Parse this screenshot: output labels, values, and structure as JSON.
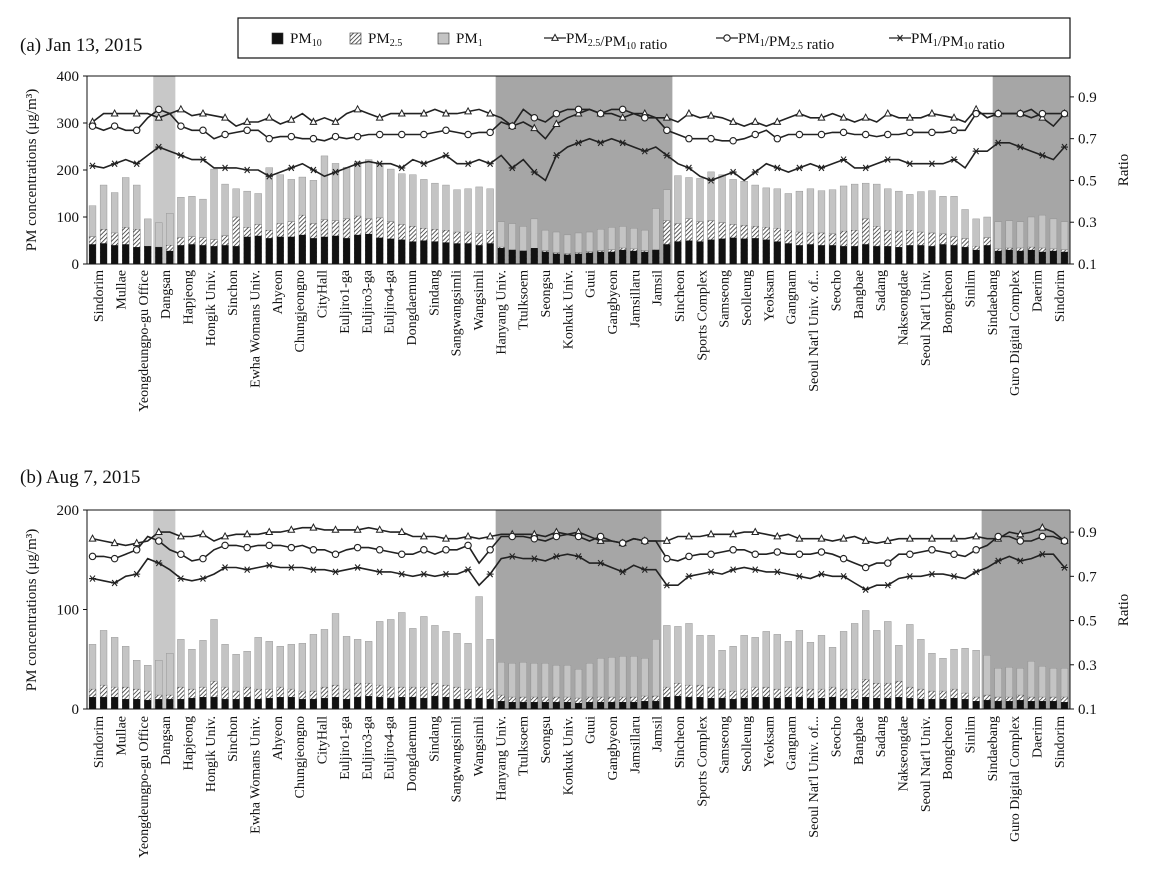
{
  "legend": {
    "items": [
      {
        "id": "pm10",
        "label": "PM",
        "sub": "10",
        "suffix": "",
        "kind": "bar-black"
      },
      {
        "id": "pm25",
        "label": "PM",
        "sub": "2.5",
        "suffix": "",
        "kind": "bar-hatch"
      },
      {
        "id": "pm1",
        "label": "PM",
        "sub": "1",
        "suffix": "",
        "kind": "bar-gray"
      },
      {
        "id": "r25_10",
        "label": "PM",
        "sub": "2.5",
        "suffix": "/PM",
        "sub2": "10",
        "suffix2": " ratio",
        "kind": "tri"
      },
      {
        "id": "r1_25",
        "label": "PM",
        "sub": "1",
        "suffix": "/PM",
        "sub2": "2.5",
        "suffix2": " ratio",
        "kind": "circle"
      },
      {
        "id": "r1_10",
        "label": "PM",
        "sub": "1",
        "suffix": "/PM",
        "sub2": "10",
        "suffix2": " ratio",
        "kind": "star"
      }
    ]
  },
  "colors": {
    "pm10": "#111111",
    "pm25_hatch": "#555555",
    "pm1": "#c4c4c4",
    "shade_light": "#c8c8c8",
    "shade_dark": "#a6a6a6",
    "line": "#222222"
  },
  "chart_data": [
    {
      "type": "bar",
      "title": "(a) Jan 13, 2015",
      "ylabel": "PM concentrations (μg/m³)",
      "y2label": "Ratio",
      "ylim": [
        0,
        400
      ],
      "yticks": [
        0,
        100,
        200,
        300,
        400
      ],
      "y2lim": [
        0.1,
        1.0
      ],
      "y2ticks": [
        "0.1",
        "0.3",
        "0.5",
        "0.7",
        "0.9"
      ],
      "x_labels": [
        "Sindorim",
        "Mullae",
        "Yeongdeungpo-gu Office",
        "Dangsan",
        "Hapjeong",
        "Hongik Univ.",
        "Sinchon",
        "Ewha Womans Univ.",
        "Ahyeon",
        "Chungjeongno",
        "CityHall",
        "Euljiro1-ga",
        "Euljiro3-ga",
        "Euljiro4-ga",
        "Dongdaemun",
        "Sindang",
        "Sangwangsimli",
        "Wangsimli",
        "Hanyang Univ.",
        "Ttulksoem",
        "Seongsu",
        "Konkuk Univ.",
        "Guui",
        "Gangbyeon",
        "Jamsillaru",
        "Jamsil",
        "Sincheon",
        "Sports Complex",
        "Samseong",
        "Seolleung",
        "Yeoksam",
        "Gangnam",
        "Seoul Nat'l Univ. of...",
        "Seocho",
        "Bangbae",
        "Sadang",
        "Nakseongdae",
        "Seoul Nat'l Univ.",
        "Bongcheon",
        "Sinlim",
        "Sindaebang",
        "Guro Digital Complex",
        "Daerim",
        "Sindorim"
      ],
      "shaded": [
        {
          "from": 6,
          "to": 7,
          "tone": "light"
        },
        {
          "from": 37,
          "to": 52,
          "tone": "dark"
        },
        {
          "from": 82,
          "to": 88,
          "tone": "dark"
        }
      ],
      "pm10": [
        42,
        44,
        40,
        42,
        36,
        38,
        36,
        28,
        40,
        42,
        40,
        38,
        40,
        38,
        58,
        60,
        55,
        58,
        58,
        62,
        55,
        58,
        60,
        55,
        62,
        64,
        56,
        54,
        52,
        48,
        50,
        48,
        46,
        44,
        44,
        40,
        44,
        34,
        30,
        28,
        34,
        26,
        22,
        20,
        22,
        24,
        26,
        26,
        30,
        28,
        26,
        30,
        42,
        48,
        50,
        48,
        52,
        54,
        56,
        54,
        55,
        52,
        48,
        44,
        40,
        42,
        40,
        40,
        38,
        38,
        42,
        38,
        38,
        36,
        40,
        40,
        38,
        42,
        40,
        36,
        30,
        40,
        28,
        30,
        28,
        30,
        26,
        28,
        26
      ],
      "pm25": [
        58,
        74,
        66,
        78,
        74,
        38,
        36,
        40,
        56,
        58,
        56,
        52,
        60,
        100,
        78,
        84,
        72,
        86,
        90,
        104,
        86,
        94,
        92,
        96,
        102,
        96,
        98,
        90,
        84,
        80,
        76,
        74,
        72,
        68,
        68,
        65,
        72,
        36,
        30,
        28,
        32,
        28,
        24,
        22,
        24,
        26,
        28,
        30,
        34,
        32,
        28,
        30,
        92,
        86,
        96,
        90,
        92,
        88,
        84,
        82,
        80,
        78,
        76,
        72,
        68,
        66,
        66,
        64,
        70,
        72,
        96,
        80,
        72,
        70,
        72,
        68,
        66,
        64,
        58,
        54,
        38,
        56,
        32,
        34,
        34,
        36,
        34,
        32,
        30
      ],
      "pm1": [
        124,
        168,
        152,
        184,
        168,
        96,
        88,
        108,
        142,
        144,
        138,
        202,
        170,
        160,
        155,
        150,
        205,
        190,
        180,
        185,
        178,
        230,
        214,
        206,
        218,
        222,
        214,
        202,
        192,
        190,
        180,
        172,
        168,
        158,
        160,
        164,
        160,
        90,
        86,
        80,
        96,
        72,
        68,
        62,
        66,
        68,
        74,
        78,
        80,
        76,
        72,
        118,
        158,
        188,
        184,
        182,
        196,
        190,
        180,
        176,
        168,
        162,
        160,
        150,
        155,
        160,
        156,
        158,
        166,
        170,
        172,
        170,
        160,
        155,
        148,
        154,
        156,
        144,
        144,
        116,
        96,
        100,
        90,
        92,
        90,
        100,
        104,
        96,
        90
      ],
      "r25_10": [
        0.78,
        0.82,
        0.82,
        0.82,
        0.82,
        0.82,
        0.8,
        0.82,
        0.84,
        0.81,
        0.82,
        0.81,
        0.8,
        0.76,
        0.78,
        0.78,
        0.8,
        0.77,
        0.79,
        0.82,
        0.78,
        0.8,
        0.78,
        0.82,
        0.84,
        0.82,
        0.8,
        0.82,
        0.82,
        0.82,
        0.82,
        0.84,
        0.82,
        0.82,
        0.83,
        0.84,
        0.82,
        0.8,
        0.76,
        0.78,
        0.75,
        0.7,
        0.77,
        0.8,
        0.82,
        0.84,
        0.82,
        0.82,
        0.8,
        0.82,
        0.82,
        0.8,
        0.8,
        0.78,
        0.82,
        0.8,
        0.81,
        0.8,
        0.78,
        0.76,
        0.78,
        0.76,
        0.78,
        0.8,
        0.82,
        0.8,
        0.8,
        0.82,
        0.8,
        0.78,
        0.8,
        0.78,
        0.82,
        0.8,
        0.8,
        0.8,
        0.82,
        0.81,
        0.8,
        0.78,
        0.84,
        0.8,
        0.82,
        0.82,
        0.82,
        0.84,
        0.8,
        0.76,
        0.82
      ],
      "r1_25": [
        0.76,
        0.74,
        0.76,
        0.74,
        0.74,
        0.8,
        0.84,
        0.82,
        0.76,
        0.74,
        0.74,
        0.7,
        0.72,
        0.73,
        0.74,
        0.74,
        0.7,
        0.71,
        0.71,
        0.7,
        0.7,
        0.69,
        0.71,
        0.7,
        0.71,
        0.72,
        0.72,
        0.72,
        0.72,
        0.72,
        0.72,
        0.73,
        0.74,
        0.73,
        0.72,
        0.73,
        0.73,
        0.78,
        0.76,
        0.84,
        0.8,
        0.78,
        0.82,
        0.84,
        0.84,
        0.84,
        0.82,
        0.84,
        0.84,
        0.82,
        0.8,
        0.8,
        0.74,
        0.72,
        0.7,
        0.7,
        0.7,
        0.69,
        0.69,
        0.7,
        0.72,
        0.74,
        0.7,
        0.72,
        0.72,
        0.72,
        0.72,
        0.73,
        0.73,
        0.72,
        0.72,
        0.71,
        0.72,
        0.72,
        0.73,
        0.73,
        0.73,
        0.73,
        0.74,
        0.74,
        0.82,
        0.82,
        0.82,
        0.82,
        0.82,
        0.8,
        0.82,
        0.82,
        0.82
      ],
      "r1_10": [
        0.57,
        0.56,
        0.58,
        0.6,
        0.58,
        0.62,
        0.66,
        0.64,
        0.62,
        0.6,
        0.6,
        0.56,
        0.56,
        0.56,
        0.55,
        0.55,
        0.52,
        0.54,
        0.56,
        0.58,
        0.55,
        0.52,
        0.54,
        0.56,
        0.58,
        0.59,
        0.58,
        0.58,
        0.56,
        0.6,
        0.58,
        0.6,
        0.62,
        0.58,
        0.58,
        0.6,
        0.58,
        0.62,
        0.56,
        0.6,
        0.54,
        0.5,
        0.62,
        0.66,
        0.68,
        0.7,
        0.68,
        0.7,
        0.68,
        0.66,
        0.64,
        0.66,
        0.62,
        0.58,
        0.56,
        0.52,
        0.5,
        0.52,
        0.54,
        0.5,
        0.54,
        0.58,
        0.56,
        0.54,
        0.56,
        0.58,
        0.56,
        0.58,
        0.6,
        0.56,
        0.56,
        0.58,
        0.6,
        0.6,
        0.58,
        0.58,
        0.58,
        0.58,
        0.6,
        0.56,
        0.64,
        0.64,
        0.68,
        0.68,
        0.66,
        0.64,
        0.62,
        0.6,
        0.66
      ]
    },
    {
      "type": "bar",
      "title": "(b) Aug 7, 2015",
      "ylabel": "PM concentrations (μg/m³)",
      "y2label": "Ratio",
      "ylim": [
        0,
        200
      ],
      "yticks": [
        0,
        100,
        200
      ],
      "y2lim": [
        0.1,
        1.0
      ],
      "y2ticks": [
        "0.1",
        "0.3",
        "0.5",
        "0.7",
        "0.9"
      ],
      "x_labels": [
        "Sindorim",
        "Mullae",
        "Yeongdeungpo-gu Office",
        "Dangsan",
        "Hapjeong",
        "Hongik Univ.",
        "Sinchon",
        "Ewha Womans Univ.",
        "Ahyeon",
        "Chungjeongno",
        "CityHall",
        "Euljiro1-ga",
        "Euljiro3-ga",
        "Euljiro4-ga",
        "Dongdaemun",
        "Sindang",
        "Sangwangsimli",
        "Wangsimli",
        "Hanyang Univ.",
        "Ttulksoem",
        "Seongsu",
        "Konkuk Univ.",
        "Guui",
        "Gangbyeon",
        "Jamsillaru",
        "Jamsil",
        "Sincheon",
        "Sports Complex",
        "Samseong",
        "Seolleung",
        "Yeoksam",
        "Gangnam",
        "Seoul Nat'l Univ. of...",
        "Seocho",
        "Bangbae",
        "Sadang",
        "Nakseongdae",
        "Seoul Nat'l Univ.",
        "Bongcheon",
        "Sinlim",
        "Sindaebang",
        "Guro Digital Complex",
        "Daerim",
        "Sindorim"
      ],
      "shaded": [
        {
          "from": 6,
          "to": 7,
          "tone": "light"
        },
        {
          "from": 37,
          "to": 51,
          "tone": "dark"
        },
        {
          "from": 81,
          "to": 88,
          "tone": "dark"
        }
      ],
      "pm10": [
        12,
        12,
        12,
        10,
        10,
        9,
        10,
        10,
        10,
        11,
        12,
        12,
        10,
        10,
        12,
        10,
        11,
        12,
        12,
        10,
        10,
        11,
        12,
        10,
        12,
        13,
        12,
        11,
        12,
        12,
        11,
        13,
        12,
        10,
        10,
        11,
        10,
        8,
        7,
        7,
        7,
        7,
        7,
        7,
        6,
        7,
        7,
        7,
        7,
        7,
        8,
        8,
        12,
        13,
        12,
        12,
        11,
        11,
        10,
        11,
        12,
        12,
        11,
        12,
        12,
        11,
        11,
        12,
        11,
        10,
        12,
        11,
        11,
        12,
        11,
        10,
        10,
        10,
        11,
        10,
        8,
        9,
        8,
        8,
        9,
        8,
        8,
        8,
        7
      ],
      "pm25": [
        20,
        24,
        22,
        22,
        20,
        18,
        14,
        14,
        22,
        20,
        22,
        28,
        22,
        18,
        22,
        20,
        20,
        22,
        20,
        18,
        18,
        22,
        24,
        20,
        26,
        26,
        24,
        22,
        22,
        22,
        22,
        26,
        24,
        22,
        20,
        22,
        20,
        14,
        12,
        12,
        12,
        12,
        12,
        12,
        11,
        12,
        12,
        12,
        12,
        12,
        13,
        13,
        22,
        26,
        24,
        24,
        22,
        20,
        18,
        20,
        22,
        22,
        20,
        22,
        22,
        20,
        20,
        22,
        20,
        20,
        30,
        26,
        26,
        28,
        22,
        20,
        18,
        18,
        20,
        16,
        12,
        14,
        12,
        12,
        14,
        12,
        12,
        12,
        12
      ],
      "pm1": [
        65,
        79,
        72,
        63,
        49,
        44,
        49,
        56,
        70,
        60,
        69,
        90,
        65,
        55,
        58,
        72,
        68,
        63,
        65,
        66,
        75,
        80,
        96,
        73,
        70,
        68,
        88,
        90,
        97,
        81,
        93,
        84,
        78,
        76,
        66,
        113,
        70,
        47,
        46,
        47,
        46,
        46,
        44,
        44,
        40,
        46,
        51,
        52,
        53,
        53,
        51,
        70,
        84,
        83,
        86,
        74,
        74,
        59,
        63,
        74,
        72,
        78,
        75,
        68,
        79,
        67,
        74,
        62,
        78,
        86,
        99,
        79,
        88,
        64,
        85,
        70,
        56,
        51,
        60,
        61,
        59,
        54,
        41,
        42,
        41,
        48,
        43,
        41,
        41
      ],
      "r25_10": [
        0.87,
        0.86,
        0.85,
        0.84,
        0.85,
        0.86,
        0.9,
        0.9,
        0.88,
        0.88,
        0.89,
        0.86,
        0.88,
        0.89,
        0.89,
        0.89,
        0.9,
        0.9,
        0.91,
        0.92,
        0.92,
        0.91,
        0.91,
        0.91,
        0.91,
        0.92,
        0.91,
        0.9,
        0.9,
        0.88,
        0.88,
        0.88,
        0.87,
        0.87,
        0.88,
        0.87,
        0.88,
        0.89,
        0.89,
        0.89,
        0.89,
        0.88,
        0.9,
        0.89,
        0.9,
        0.88,
        0.86,
        0.86,
        0.85,
        0.87,
        0.86,
        0.86,
        0.86,
        0.88,
        0.88,
        0.88,
        0.89,
        0.89,
        0.89,
        0.9,
        0.9,
        0.89,
        0.88,
        0.89,
        0.87,
        0.87,
        0.87,
        0.86,
        0.87,
        0.88,
        0.86,
        0.85,
        0.86,
        0.87,
        0.87,
        0.87,
        0.87,
        0.87,
        0.87,
        0.87,
        0.88,
        0.87,
        0.87,
        0.9,
        0.89,
        0.9,
        0.92,
        0.9,
        0.86
      ],
      "r1_25": [
        0.79,
        0.79,
        0.78,
        0.8,
        0.82,
        0.88,
        0.86,
        0.82,
        0.8,
        0.77,
        0.78,
        0.82,
        0.84,
        0.84,
        0.83,
        0.84,
        0.84,
        0.84,
        0.83,
        0.84,
        0.82,
        0.82,
        0.8,
        0.82,
        0.83,
        0.83,
        0.82,
        0.81,
        0.8,
        0.8,
        0.82,
        0.8,
        0.82,
        0.82,
        0.84,
        0.76,
        0.82,
        0.88,
        0.88,
        0.88,
        0.87,
        0.86,
        0.88,
        0.89,
        0.88,
        0.86,
        0.88,
        0.86,
        0.85,
        0.87,
        0.86,
        0.86,
        0.78,
        0.77,
        0.79,
        0.8,
        0.8,
        0.81,
        0.82,
        0.82,
        0.8,
        0.8,
        0.81,
        0.8,
        0.8,
        0.8,
        0.81,
        0.8,
        0.78,
        0.76,
        0.74,
        0.76,
        0.76,
        0.8,
        0.8,
        0.81,
        0.82,
        0.81,
        0.8,
        0.79,
        0.82,
        0.84,
        0.88,
        0.88,
        0.86,
        0.86,
        0.88,
        0.88,
        0.86
      ],
      "r1_10": [
        0.69,
        0.68,
        0.67,
        0.7,
        0.71,
        0.78,
        0.76,
        0.73,
        0.69,
        0.68,
        0.69,
        0.71,
        0.74,
        0.74,
        0.73,
        0.74,
        0.75,
        0.74,
        0.74,
        0.74,
        0.73,
        0.73,
        0.72,
        0.73,
        0.74,
        0.73,
        0.72,
        0.72,
        0.71,
        0.7,
        0.71,
        0.7,
        0.71,
        0.71,
        0.73,
        0.66,
        0.71,
        0.78,
        0.79,
        0.78,
        0.78,
        0.77,
        0.79,
        0.8,
        0.79,
        0.76,
        0.76,
        0.74,
        0.72,
        0.75,
        0.73,
        0.73,
        0.66,
        0.66,
        0.7,
        0.71,
        0.72,
        0.71,
        0.73,
        0.74,
        0.73,
        0.72,
        0.72,
        0.71,
        0.7,
        0.69,
        0.71,
        0.7,
        0.7,
        0.67,
        0.64,
        0.66,
        0.66,
        0.69,
        0.7,
        0.7,
        0.71,
        0.71,
        0.7,
        0.69,
        0.72,
        0.74,
        0.77,
        0.79,
        0.77,
        0.78,
        0.8,
        0.8,
        0.74
      ]
    }
  ]
}
